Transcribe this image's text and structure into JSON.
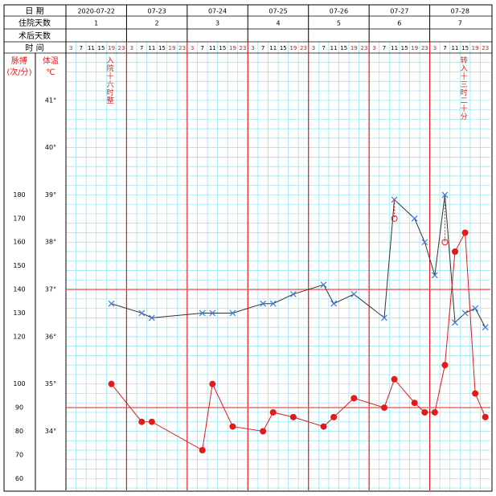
{
  "chart_data": {
    "type": "line",
    "row_labels": [
      "日 期",
      "住院天数",
      "术后天数",
      "时 间"
    ],
    "dates": [
      "2020-07-22",
      "07-23",
      "07-24",
      "07-25",
      "07-26",
      "07-27",
      "07-28"
    ],
    "hospital_days": [
      1,
      2,
      3,
      4,
      5,
      6,
      7
    ],
    "categories": [
      "3",
      "7",
      "11",
      "15",
      "19",
      "23",
      "3",
      "7",
      "11",
      "15",
      "19",
      "23",
      "3",
      "7",
      "11",
      "15",
      "19",
      "23",
      "3",
      "7",
      "11",
      "15",
      "19",
      "23",
      "3",
      "7",
      "11",
      "15",
      "19",
      "23",
      "3",
      "7",
      "11",
      "15",
      "19",
      "23",
      "3",
      "7",
      "11",
      "15",
      "19",
      "23"
    ],
    "y2label": [
      "脉搏",
      "(次/分)"
    ],
    "ylabel": [
      "体温",
      "℃"
    ],
    "ylim": [
      32.75,
      42
    ],
    "yticks": [
      {
        "value": 41,
        "label": "41°"
      },
      {
        "value": 40,
        "label": "40°"
      },
      {
        "value": 39,
        "label": "39°"
      },
      {
        "value": 38,
        "label": "38°"
      },
      {
        "value": 37,
        "label": "37°"
      },
      {
        "value": 36,
        "label": "36°"
      },
      {
        "value": 35,
        "label": "35°"
      },
      {
        "value": 34,
        "label": "34°"
      }
    ],
    "y2lim": [
      55,
      240
    ],
    "y2ticks": [
      180,
      170,
      160,
      150,
      140,
      130,
      120,
      100,
      90,
      80,
      70,
      60
    ],
    "reference_lines": [
      {
        "axis": "y",
        "value": 37
      },
      {
        "axis": "y2",
        "value": 90
      }
    ],
    "series": [
      {
        "color": "#3a7bd5",
        "line_color": "#333333",
        "marker": "x",
        "x": [
          4,
          7,
          8,
          13,
          14,
          16,
          19,
          20,
          22,
          25,
          26,
          28,
          31,
          32,
          34,
          35,
          36,
          37,
          38,
          39,
          40,
          41
        ],
        "values": [
          36.7,
          36.5,
          36.4,
          36.5,
          36.5,
          36.5,
          36.7,
          36.7,
          36.9,
          37.1,
          36.7,
          36.9,
          36.4,
          38.9,
          38.5,
          38.0,
          37.3,
          39.0,
          36.3,
          36.5,
          36.6,
          36.2
        ]
      },
      {
        "color": "#e31a1c",
        "line_color": "#e31a1c",
        "marker": "dot",
        "axis": "y2",
        "x": [
          4,
          7,
          8,
          13,
          14,
          16,
          19,
          20,
          22,
          25,
          26,
          28,
          31,
          32,
          34,
          35,
          36,
          37,
          38,
          39,
          40,
          41
        ],
        "values": [
          100,
          84,
          84,
          72,
          100,
          82,
          80,
          88,
          86,
          82,
          86,
          94,
          90,
          102,
          92,
          88,
          88,
          108,
          156,
          164,
          96,
          86
        ]
      },
      {
        "color": "#e31a1c",
        "marker": "ring",
        "linked_to": 0,
        "x": [
          32,
          37
        ],
        "values": [
          38.5,
          38.0
        ]
      }
    ],
    "annotations": [
      {
        "text": "入院十六时整",
        "x": 4
      },
      {
        "text": "转入十三时二十分",
        "x": 39
      }
    ]
  }
}
